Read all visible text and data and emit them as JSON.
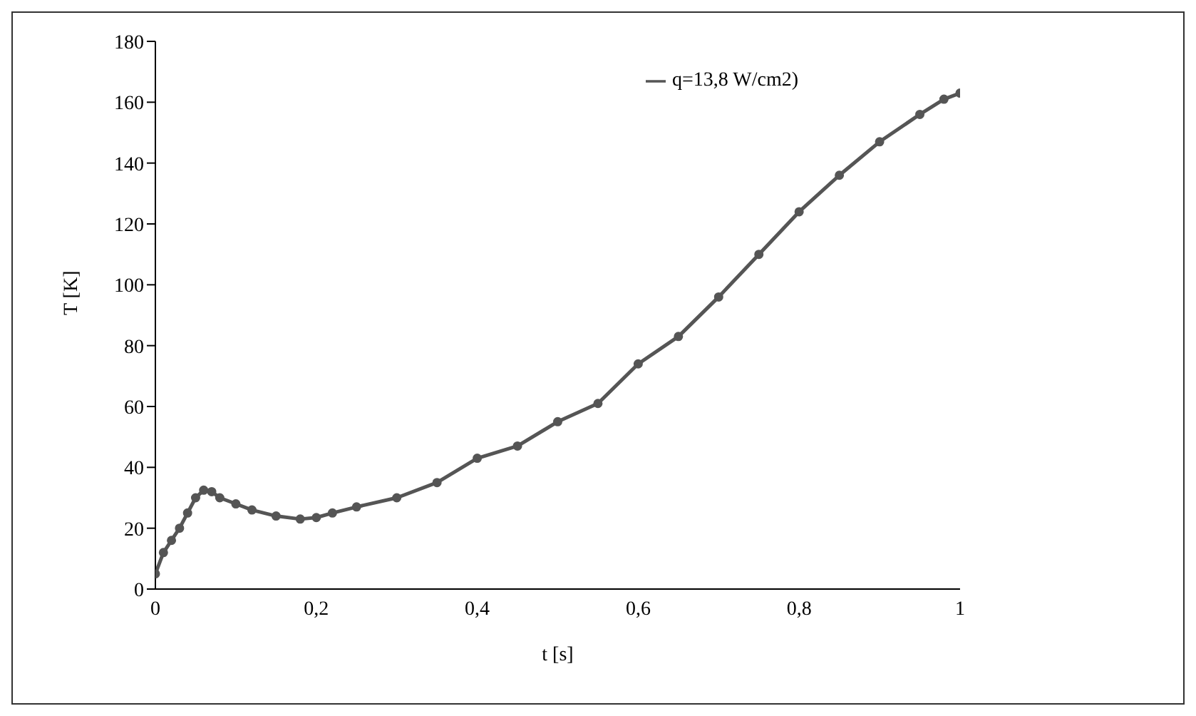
{
  "chart_data": {
    "type": "line",
    "xlabel": "t [s]",
    "ylabel": "T [K]",
    "x": [
      0,
      0.01,
      0.02,
      0.03,
      0.04,
      0.05,
      0.06,
      0.07,
      0.08,
      0.1,
      0.12,
      0.15,
      0.18,
      0.2,
      0.22,
      0.25,
      0.3,
      0.35,
      0.4,
      0.45,
      0.5,
      0.55,
      0.6,
      0.65,
      0.7,
      0.75,
      0.8,
      0.85,
      0.9,
      0.95,
      0.98,
      1
    ],
    "series": [
      {
        "name": "q=13,8 W/cm2)",
        "color": "#555555",
        "values": [
          5,
          12,
          16,
          20,
          25,
          30,
          32.5,
          32,
          30,
          28,
          26,
          24,
          23,
          23.5,
          25,
          27,
          30,
          35,
          43,
          47,
          55,
          61,
          74,
          83,
          96,
          110,
          124,
          136,
          147,
          156,
          161,
          163
        ]
      }
    ],
    "xlim": [
      0,
      1
    ],
    "xticks": [
      {
        "value": 0,
        "label": "0"
      },
      {
        "value": 0.2,
        "label": "0,2"
      },
      {
        "value": 0.4,
        "label": "0,4"
      },
      {
        "value": 0.6,
        "label": "0,6"
      },
      {
        "value": 0.8,
        "label": "0,8"
      },
      {
        "value": 1,
        "label": "1"
      }
    ],
    "ylim": [
      0,
      180
    ],
    "yticks": [
      0,
      20,
      40,
      60,
      80,
      100,
      120,
      140,
      160,
      180
    ],
    "grid": false,
    "legend": "top right",
    "marker": "circle",
    "line_style": "solid"
  }
}
